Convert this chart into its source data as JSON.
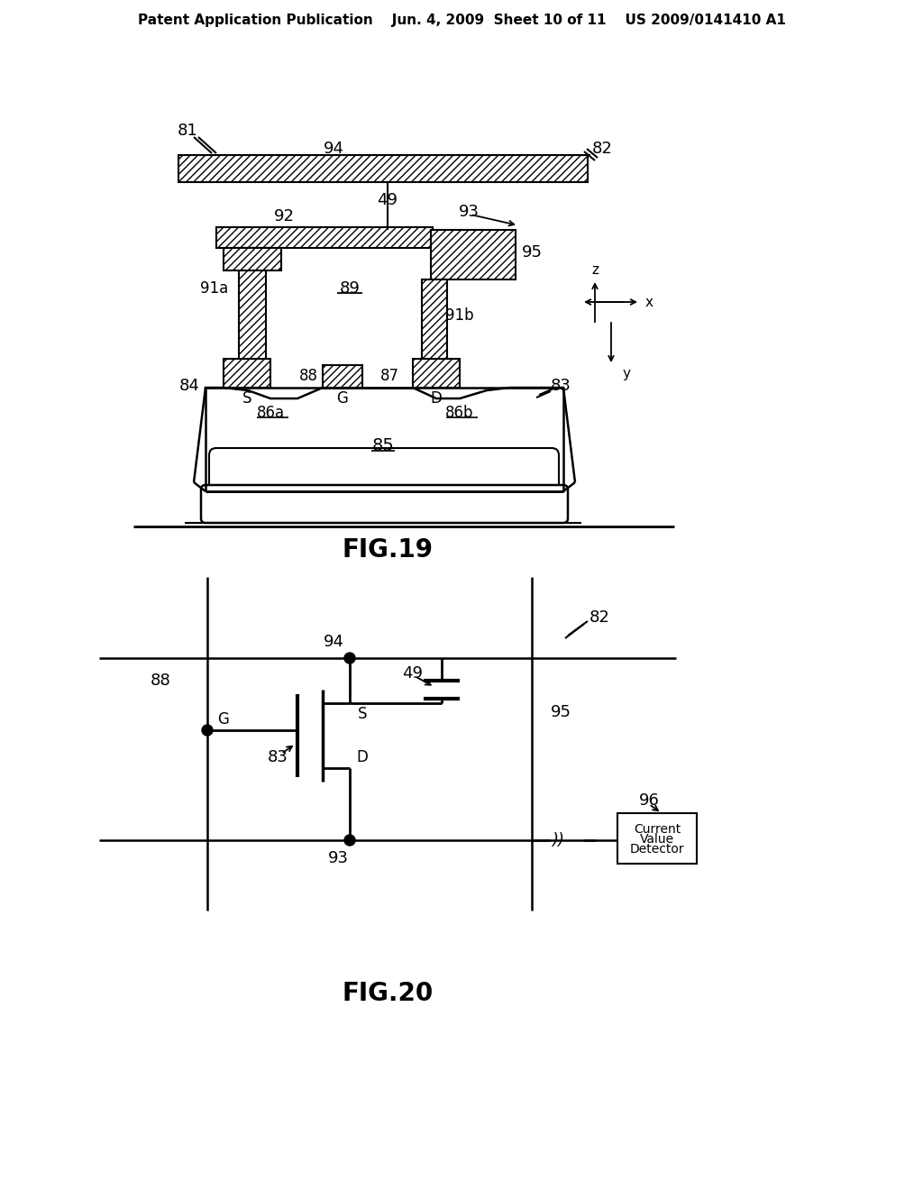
{
  "bg_color": "#ffffff",
  "header_text": "Patent Application Publication    Jun. 4, 2009  Sheet 10 of 11    US 2009/0141410 A1",
  "fig19_title": "FIG.19",
  "fig20_title": "FIG.20"
}
